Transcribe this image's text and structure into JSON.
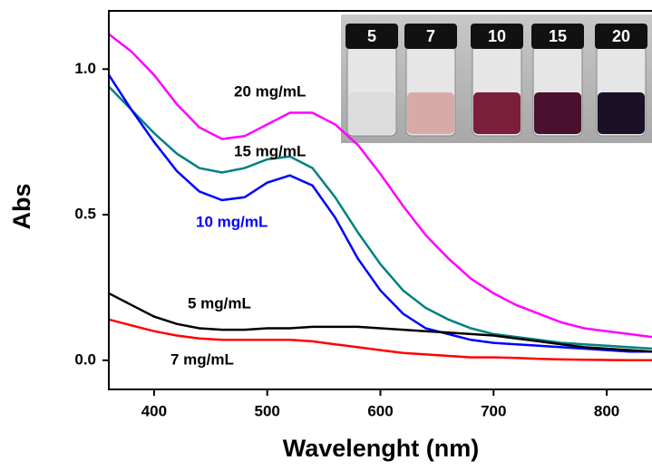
{
  "chart_data": {
    "type": "line",
    "x_label": "Wavelenght (nm)",
    "y_label": "Abs",
    "x": [
      360,
      380,
      400,
      420,
      440,
      460,
      480,
      500,
      520,
      540,
      560,
      580,
      600,
      620,
      640,
      660,
      680,
      700,
      720,
      740,
      760,
      780,
      800,
      820,
      840
    ],
    "series": [
      {
        "name": "20 mg/mL",
        "color": "#ff00ff",
        "values": [
          1.12,
          1.06,
          0.98,
          0.88,
          0.8,
          0.76,
          0.77,
          0.81,
          0.85,
          0.85,
          0.81,
          0.74,
          0.64,
          0.53,
          0.43,
          0.35,
          0.28,
          0.23,
          0.19,
          0.16,
          0.13,
          0.11,
          0.1,
          0.09,
          0.08
        ]
      },
      {
        "name": "15 mg/mL",
        "color": "#008080",
        "values": [
          0.94,
          0.86,
          0.78,
          0.71,
          0.66,
          0.645,
          0.66,
          0.69,
          0.7,
          0.66,
          0.56,
          0.44,
          0.33,
          0.24,
          0.18,
          0.14,
          0.11,
          0.09,
          0.08,
          0.07,
          0.06,
          0.055,
          0.05,
          0.045,
          0.04
        ]
      },
      {
        "name": "10 mg/mL",
        "color": "#0000ff",
        "values": [
          0.98,
          0.86,
          0.75,
          0.65,
          0.58,
          0.55,
          0.56,
          0.61,
          0.635,
          0.6,
          0.49,
          0.35,
          0.24,
          0.16,
          0.11,
          0.09,
          0.07,
          0.06,
          0.055,
          0.05,
          0.045,
          0.04,
          0.035,
          0.03,
          0.03
        ]
      },
      {
        "name": "5 mg/mL",
        "color": "#000000",
        "values": [
          0.23,
          0.19,
          0.15,
          0.125,
          0.11,
          0.105,
          0.105,
          0.11,
          0.11,
          0.115,
          0.115,
          0.115,
          0.11,
          0.105,
          0.1,
          0.095,
          0.09,
          0.085,
          0.075,
          0.065,
          0.055,
          0.045,
          0.04,
          0.035,
          0.03
        ]
      },
      {
        "name": "7 mg/mL",
        "color": "#ff0000",
        "values": [
          0.14,
          0.12,
          0.1,
          0.085,
          0.075,
          0.07,
          0.07,
          0.07,
          0.07,
          0.065,
          0.055,
          0.045,
          0.035,
          0.025,
          0.02,
          0.015,
          0.01,
          0.01,
          0.008,
          0.005,
          0.003,
          0.002,
          0.001,
          0.0,
          0.0
        ]
      }
    ],
    "xlim": [
      360,
      840
    ],
    "xticks": [
      400,
      500,
      600,
      700,
      800
    ],
    "ylim": [
      -0.1,
      1.2
    ],
    "yticks": [
      {
        "value": 0,
        "label": "0.0"
      },
      0.5,
      {
        "value": 1,
        "label": "1.0"
      }
    ],
    "inset_labels": [
      "5",
      "7",
      "10",
      "15",
      "20"
    ]
  }
}
